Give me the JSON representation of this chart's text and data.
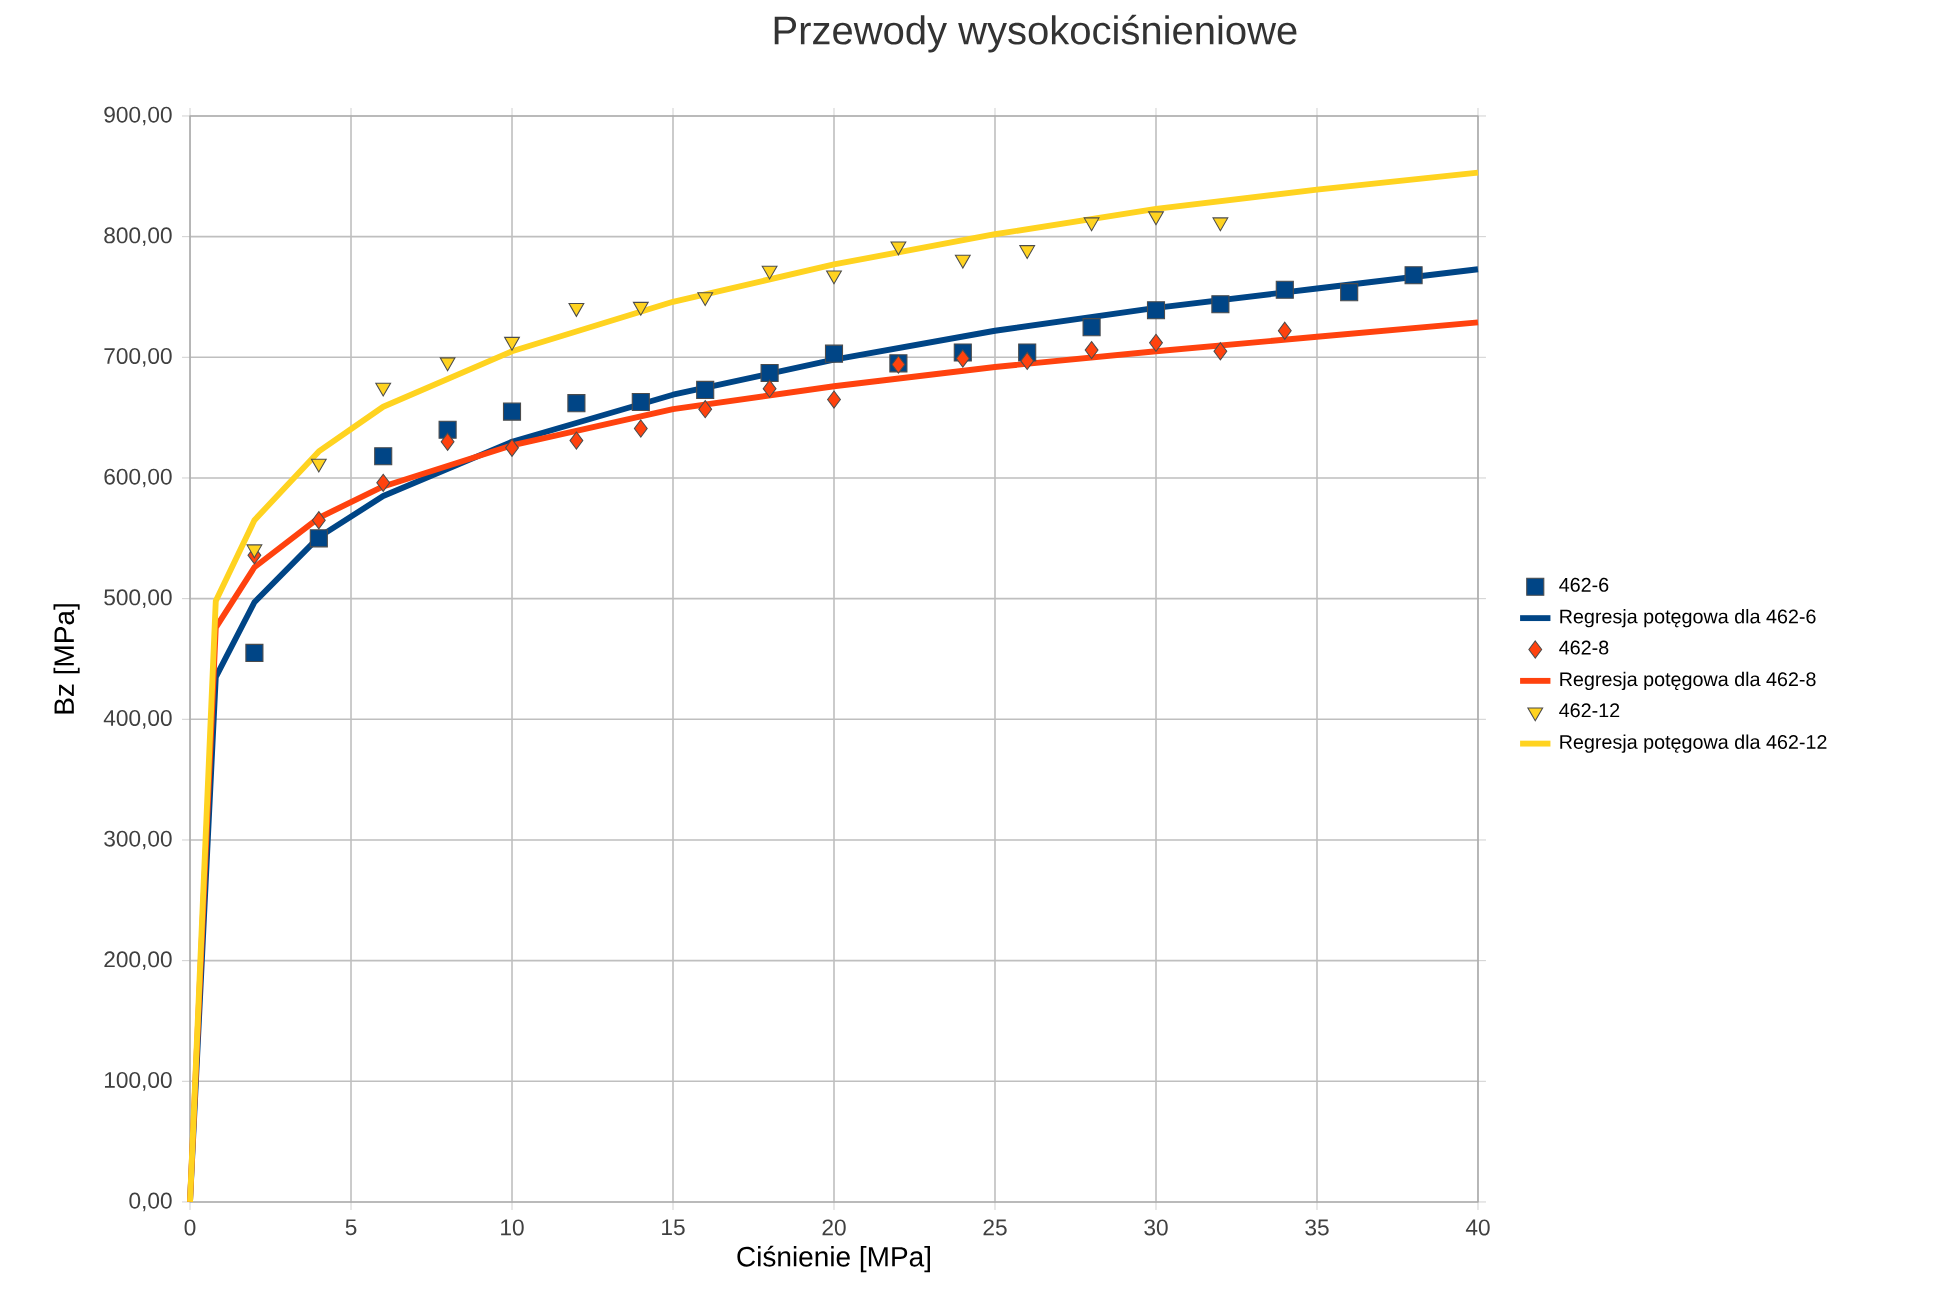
{
  "chart_data": {
    "type": "scatter",
    "title": "Przewody wysokociśnieniowe",
    "xlabel": "Ciśnienie [MPa]",
    "ylabel": "Bz [MPa]",
    "xlim": [
      0,
      40
    ],
    "ylim": [
      0,
      900
    ],
    "xticks": [
      0,
      5,
      10,
      15,
      20,
      25,
      30,
      35,
      40
    ],
    "yticks": [
      {
        "value": 0,
        "label": "0,00"
      },
      {
        "value": 100,
        "label": "100,00"
      },
      {
        "value": 200,
        "label": "200,00"
      },
      {
        "value": 300,
        "label": "300,00"
      },
      {
        "value": 400,
        "label": "400,00"
      },
      {
        "value": 500,
        "label": "500,00"
      },
      {
        "value": 600,
        "label": "600,00"
      },
      {
        "value": 700,
        "label": "700,00"
      },
      {
        "value": 800,
        "label": "800,00"
      },
      {
        "value": 900,
        "label": "900,00"
      }
    ],
    "grid": true,
    "legend": "right",
    "series": [
      {
        "name": "462-6",
        "type": "scatter",
        "marker": "square",
        "color": "#004586",
        "x": [
          2,
          4,
          6,
          8,
          10,
          12,
          14,
          16,
          18,
          20,
          22,
          24,
          26,
          28,
          30,
          32,
          34,
          36,
          38
        ],
        "values": [
          455,
          550,
          618,
          640,
          655,
          662,
          663,
          673,
          687,
          703,
          695,
          704,
          704,
          725,
          739,
          744,
          756,
          754,
          768
        ]
      },
      {
        "name": "Regresja potęgowa dla 462-6",
        "type": "line",
        "marker": "none",
        "line_style": "solid",
        "color": "#004586",
        "x": [
          0,
          0.8,
          2,
          4,
          6,
          10,
          15,
          20,
          25,
          30,
          35,
          40
        ],
        "values": [
          0,
          435,
          497,
          551,
          585,
          630,
          669,
          698,
          722,
          741,
          757,
          773
        ]
      },
      {
        "name": "462-8",
        "type": "scatter",
        "marker": "diamond",
        "color": "#ff420e",
        "x": [
          2,
          4,
          6,
          8,
          10,
          12,
          14,
          16,
          18,
          20,
          22,
          24,
          26,
          28,
          30,
          32,
          34
        ],
        "values": [
          536,
          565,
          596,
          630,
          625,
          631,
          641,
          657,
          674,
          665,
          694,
          699,
          697,
          706,
          712,
          705,
          722
        ]
      },
      {
        "name": "Regresja potęgowa dla 462-8",
        "type": "line",
        "marker": "none",
        "line_style": "solid",
        "color": "#ff420e",
        "x": [
          0,
          0.8,
          2,
          4,
          6,
          10,
          15,
          20,
          25,
          30,
          35,
          40
        ],
        "values": [
          0,
          476,
          526,
          567,
          593,
          627,
          657,
          676,
          692,
          705,
          717,
          729
        ]
      },
      {
        "name": "462-12",
        "type": "scatter",
        "marker": "triangle",
        "color": "#ffd320",
        "x": [
          2,
          4,
          6,
          8,
          10,
          12,
          14,
          16,
          18,
          20,
          22,
          24,
          26,
          28,
          30,
          32
        ],
        "values": [
          541,
          612,
          675,
          696,
          713,
          741,
          742,
          750,
          772,
          768,
          792,
          781,
          789,
          812,
          817,
          812
        ]
      },
      {
        "name": "Regresja potęgowa dla 462-12",
        "type": "line",
        "marker": "none",
        "line_style": "solid",
        "color": "#ffd320",
        "x": [
          0,
          0.8,
          2,
          4,
          6,
          10,
          15,
          20,
          25,
          30,
          35,
          40
        ],
        "values": [
          0,
          498,
          565,
          622,
          659,
          705,
          746,
          777,
          802,
          823,
          839,
          853
        ]
      }
    ]
  }
}
